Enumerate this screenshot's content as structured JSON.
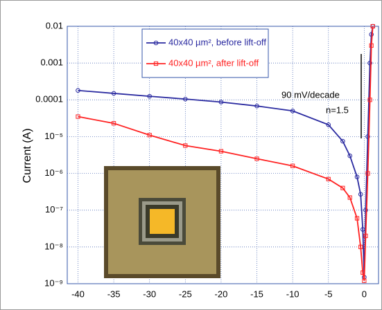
{
  "chart_data": {
    "type": "line",
    "y_label": "Current (A)",
    "x": [
      -40,
      -35,
      -30,
      -25,
      -20,
      -15,
      -10,
      -5,
      -3,
      -2,
      -1,
      -0.5,
      -0.2,
      0,
      0.2,
      0.5,
      0.8,
      1,
      1.2
    ],
    "series": [
      {
        "name": "40x40 µm², before lift-off",
        "color": "#2a2aa0",
        "marker": "circle",
        "values": [
          0.00018,
          0.00015,
          0.000125,
          0.000105,
          8.7e-05,
          6.8e-05,
          5e-05,
          2.1e-05,
          7.5e-06,
          3e-06,
          8e-07,
          2.7e-07,
          3e-08,
          1.5e-09,
          1e-07,
          1e-05,
          0.001,
          0.006,
          0.01
        ]
      },
      {
        "name": "40x40 µm², after lift-off",
        "color": "#ff2020",
        "marker": "square",
        "values": [
          3.5e-05,
          2.3e-05,
          1.1e-05,
          5.7e-06,
          4e-06,
          2.5e-06,
          1.6e-06,
          7e-07,
          4e-07,
          2.2e-07,
          6e-08,
          1e-08,
          2e-09,
          1.2e-09,
          2e-08,
          1e-06,
          0.0001,
          0.003,
          0.01
        ]
      }
    ],
    "xlim": [
      -41.5,
      2
    ],
    "xticks": [
      -40,
      -35,
      -30,
      -25,
      -20,
      -15,
      -10,
      -5,
      0
    ],
    "ylim": [
      1e-09,
      0.01
    ],
    "log_y": true,
    "yticks": [
      0.01,
      0.001,
      0.0001,
      {
        "value": 1e-05,
        "label": "10⁻⁵"
      },
      {
        "value": 1e-06,
        "label": "10⁻⁶"
      },
      {
        "value": 1e-07,
        "label": "10⁻⁷"
      },
      {
        "value": 1e-08,
        "label": "10⁻⁸"
      },
      {
        "value": 1e-09,
        "label": "10⁻⁹"
      }
    ],
    "grid": true,
    "legend": "upper right",
    "annotations": [
      "90 mV/decade",
      "n=1.5"
    ]
  }
}
